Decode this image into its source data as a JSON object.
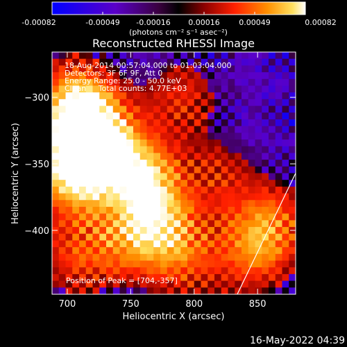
{
  "chart_data": {
    "type": "heatmap",
    "title": "Reconstructed RHESSI Image",
    "xlabel": "Heliocentric X (arcsec)",
    "ylabel": "Heliocentric Y (arcsec)",
    "xlim": [
      688,
      880
    ],
    "ylim": [
      -448,
      -266
    ],
    "xticks": [
      700,
      750,
      800,
      850
    ],
    "yticks": [
      -300,
      -350,
      -400
    ],
    "colorbar": {
      "ticks": [
        "-0.00082",
        "-0.00049",
        "-0.00016",
        "0.00016",
        "0.00049",
        "0.00082"
      ],
      "unit_label": "(photons cm⁻² s⁻¹ asec⁻²)",
      "range": [
        -0.00082,
        0.00082
      ]
    },
    "annotations": [
      "18-Aug-2014 00:57:04.000 to 01:03:04.000",
      "Detectors: 3F 6F 9F, Att 0",
      "Energy Range: 25.0 - 50.0 keV",
      "Clean     Total counts: 4.77E+03"
    ],
    "peak_label": "Position of Peak = [704,-357]",
    "limb_line": {
      "x": [
        834,
        880
      ],
      "y": [
        -448,
        -357
      ]
    },
    "hotspots": [
      {
        "x": 704,
        "y": -357,
        "value": 0.00082
      },
      {
        "x": 715,
        "y": -320,
        "value": 0.00065
      },
      {
        "x": 705,
        "y": -300,
        "value": 0.00052
      },
      {
        "x": 730,
        "y": -340,
        "value": 0.00055
      },
      {
        "x": 760,
        "y": -360,
        "value": 0.0006
      },
      {
        "x": 770,
        "y": -390,
        "value": 0.00048
      },
      {
        "x": 745,
        "y": -410,
        "value": 0.0004
      },
      {
        "x": 790,
        "y": -420,
        "value": 0.00045
      },
      {
        "x": 790,
        "y": -300,
        "value": 0.00035
      },
      {
        "x": 820,
        "y": -360,
        "value": 0.0003
      },
      {
        "x": 860,
        "y": -395,
        "value": 0.0005
      },
      {
        "x": 845,
        "y": -420,
        "value": 0.0004
      },
      {
        "x": 705,
        "y": -420,
        "value": 0.00038
      }
    ]
  },
  "footer": {
    "timestamp": "16-May-2022 04:39"
  }
}
